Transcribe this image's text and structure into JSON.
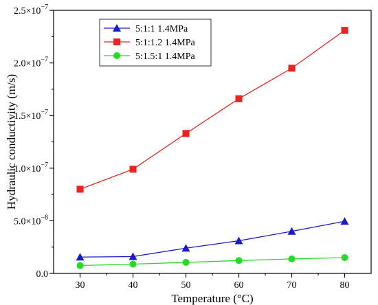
{
  "chart_data": {
    "type": "line",
    "xlabel": "Temperature (°C)",
    "ylabel": "Hydraulic conductivity (m/s)",
    "x": [
      30,
      40,
      50,
      60,
      70,
      80
    ],
    "xlim": [
      25,
      85
    ],
    "ylim": [
      0,
      2.5e-07
    ],
    "x_ticks": [
      "30",
      "40",
      "50",
      "60",
      "70",
      "80"
    ],
    "y_tick_values": [
      0,
      5e-08,
      1e-07,
      1.5e-07,
      2e-07,
      2.5e-07
    ],
    "y_ticks": [
      {
        "base": "0.0",
        "exp": ""
      },
      {
        "base": "5.0×10",
        "exp": "−8"
      },
      {
        "base": "1.0×10",
        "exp": "−7"
      },
      {
        "base": "1.5×10",
        "exp": "−7"
      },
      {
        "base": "2.0×10",
        "exp": "−7"
      },
      {
        "base": "2.5×10",
        "exp": "−7"
      }
    ],
    "grid": false,
    "legend_position": "top-left",
    "series": [
      {
        "name": "5:1:1 1.4MPa",
        "color": "#1a1acc",
        "marker": "triangle",
        "values": [
          1.55e-08,
          1.6e-08,
          2.4e-08,
          3.1e-08,
          4e-08,
          4.95e-08
        ]
      },
      {
        "name": "5:1:1.2 1.4MPa",
        "color": "#ee2020",
        "marker": "square",
        "values": [
          8e-08,
          9.9e-08,
          1.33e-07,
          1.66e-07,
          1.95e-07,
          2.31e-07
        ]
      },
      {
        "name": "5:1.5:1 1.4MPa",
        "color": "#22dd22",
        "marker": "circle",
        "values": [
          7.5e-09,
          8.8e-09,
          1.05e-08,
          1.22e-08,
          1.38e-08,
          1.5e-08
        ]
      }
    ]
  }
}
